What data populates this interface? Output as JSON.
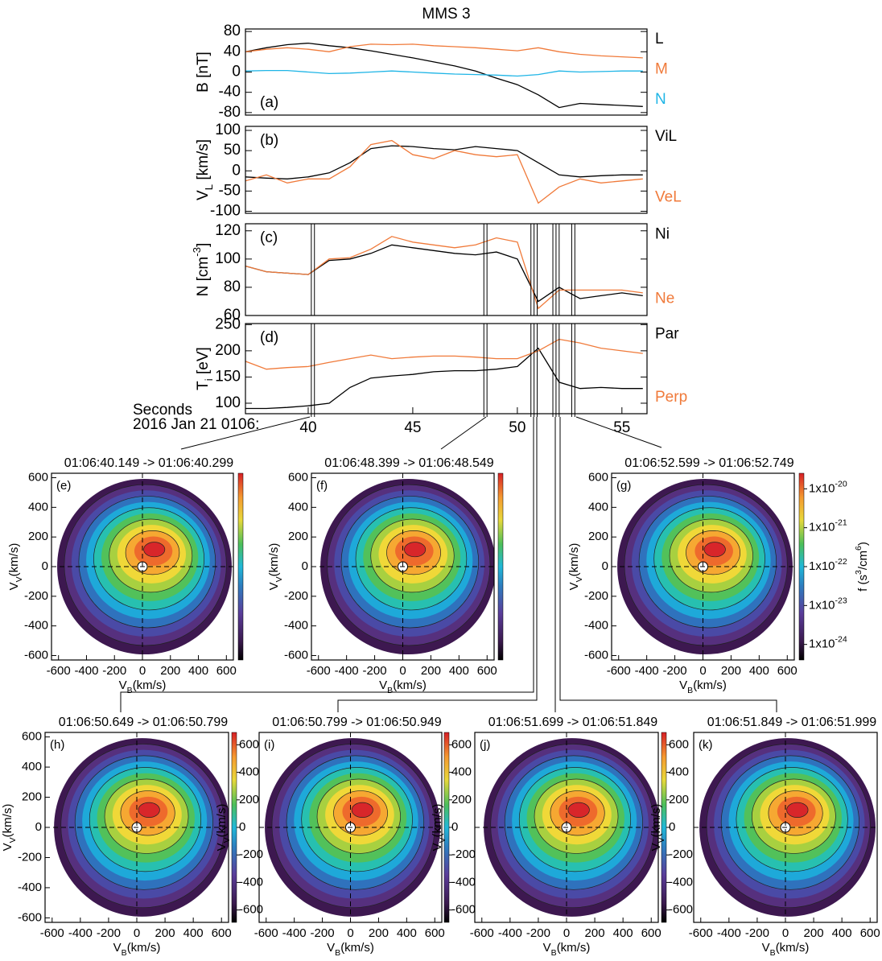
{
  "chart_data": [
    {
      "type": "line",
      "title": "MMS 3",
      "panel_label": "(a)",
      "ylabel": [
        "B [nT]"
      ],
      "ylabel_shift": "sub",
      "x": [
        37,
        38,
        39,
        40,
        41,
        42,
        43,
        44,
        45,
        46,
        47,
        48,
        49,
        50,
        51,
        52,
        53,
        54,
        55,
        56
      ],
      "xlim": [
        37,
        56.2
      ],
      "ylim": [
        -85,
        85
      ],
      "yticks": [
        -80,
        -40,
        0,
        40,
        80
      ],
      "series": [
        {
          "name": "L",
          "color": "#000000",
          "values": [
            40,
            48,
            54,
            57,
            52,
            48,
            42,
            35,
            28,
            20,
            12,
            2,
            -12,
            -25,
            -45,
            -70,
            -62,
            -64,
            -66,
            -68
          ]
        },
        {
          "name": "M",
          "color": "#f07a3a",
          "values": [
            40,
            45,
            48,
            45,
            40,
            50,
            55,
            54,
            55,
            52,
            50,
            48,
            45,
            42,
            48,
            40,
            35,
            32,
            30,
            28
          ]
        },
        {
          "name": "N",
          "color": "#1fb5e6",
          "values": [
            2,
            3,
            3,
            0,
            -3,
            -2,
            0,
            2,
            0,
            -2,
            -4,
            -5,
            -6,
            -8,
            -5,
            2,
            0,
            1,
            2,
            2
          ]
        }
      ]
    },
    {
      "type": "line",
      "panel_label": "(b)",
      "ylabel": [
        "V",
        "L",
        " [km/s]"
      ],
      "ylabel_shift": "sub",
      "x": [
        37,
        38,
        39,
        40,
        41,
        42,
        43,
        44,
        45,
        46,
        47,
        48,
        49,
        50,
        51,
        52,
        53,
        54,
        55,
        56
      ],
      "xlim": [
        37,
        56.2
      ],
      "ylim": [
        -105,
        110
      ],
      "yticks": [
        -100,
        -50,
        0,
        50,
        100
      ],
      "series": [
        {
          "name": "ViL",
          "color": "#000000",
          "values": [
            -15,
            -18,
            -20,
            -15,
            -5,
            20,
            55,
            62,
            60,
            55,
            52,
            60,
            55,
            50,
            20,
            -10,
            -15,
            -12,
            -10,
            -10
          ]
        },
        {
          "name": "VeL",
          "color": "#f07a3a",
          "values": [
            -25,
            -10,
            -30,
            -20,
            -20,
            10,
            65,
            75,
            40,
            30,
            50,
            40,
            35,
            40,
            -80,
            -40,
            -20,
            -30,
            -25,
            -20
          ]
        }
      ]
    },
    {
      "type": "line",
      "panel_label": "(c)",
      "ylabel": [
        "N [cm",
        "-3",
        "]"
      ],
      "ylabel_shift": "super",
      "x": [
        37,
        38,
        39,
        40,
        41,
        42,
        43,
        44,
        45,
        46,
        47,
        48,
        49,
        50,
        51,
        52,
        53,
        54,
        55,
        56
      ],
      "xlim": [
        37,
        56.2
      ],
      "ylim": [
        60,
        125
      ],
      "yticks": [
        60,
        80,
        100,
        120
      ],
      "vlines": [
        40.149,
        40.299,
        48.399,
        48.549,
        50.649,
        50.799,
        50.949,
        51.699,
        51.849,
        51.999,
        52.599,
        52.749
      ],
      "series": [
        {
          "name": "Ni",
          "color": "#000000",
          "values": [
            95,
            91,
            90,
            89,
            99,
            100,
            104,
            110,
            108,
            106,
            104,
            103,
            105,
            100,
            70,
            80,
            72,
            74,
            76,
            74
          ]
        },
        {
          "name": "Ne",
          "color": "#f07a3a",
          "values": [
            95,
            91,
            90,
            89,
            100,
            101,
            107,
            116,
            112,
            110,
            108,
            110,
            115,
            112,
            65,
            78,
            78,
            78,
            78,
            76
          ]
        }
      ]
    },
    {
      "type": "line",
      "panel_label": "(d)",
      "ylabel": [
        "T",
        "i",
        " [eV]"
      ],
      "ylabel_shift": "sub",
      "x": [
        37,
        38,
        39,
        40,
        41,
        42,
        43,
        44,
        45,
        46,
        47,
        48,
        49,
        50,
        51,
        52,
        53,
        54,
        55,
        56
      ],
      "xlim": [
        37,
        56.2
      ],
      "ylim": [
        80,
        252
      ],
      "yticks": [
        100,
        150,
        200,
        250
      ],
      "xticks": [
        40,
        45,
        50,
        55
      ],
      "xlabel": [
        "Seconds",
        "2016 Jan 21 0106:"
      ],
      "vlines": [
        40.149,
        40.299,
        48.399,
        48.549,
        50.649,
        50.799,
        50.949,
        51.699,
        51.849,
        51.999,
        52.599,
        52.749
      ],
      "series": [
        {
          "name": "Par",
          "color": "#000000",
          "values": [
            90,
            90,
            92,
            95,
            100,
            130,
            148,
            152,
            155,
            160,
            162,
            162,
            165,
            170,
            205,
            140,
            128,
            130,
            128,
            128
          ]
        },
        {
          "name": "Perp",
          "color": "#f07a3a",
          "values": [
            180,
            165,
            168,
            170,
            178,
            185,
            192,
            185,
            188,
            190,
            190,
            188,
            185,
            185,
            200,
            222,
            215,
            205,
            200,
            195
          ]
        }
      ]
    },
    {
      "type": "contour",
      "title": "01:06:40.149 -> 01:06:40.299",
      "panel_label": "(e)",
      "xlabel": [
        "V",
        "B",
        "(km/s)"
      ],
      "ylabel": [
        "V",
        "V",
        "(km/s)"
      ],
      "label_shift": "sub",
      "xlim": [
        -650,
        650
      ],
      "ylim": [
        -630,
        630
      ],
      "xticks": [
        -600,
        -400,
        -200,
        0,
        200,
        400,
        600
      ],
      "yticks": [
        -600,
        -400,
        -200,
        0,
        200,
        400,
        600
      ],
      "colorbar_ticks": []
    },
    {
      "type": "contour",
      "title": "01:06:48.399 -> 01:06:48.549",
      "panel_label": "(f)",
      "xlabel": [
        "V",
        "B",
        "(km/s)"
      ],
      "ylabel": [
        "V",
        "V",
        "(km/s)"
      ],
      "label_shift": "sub",
      "xlim": [
        -650,
        650
      ],
      "ylim": [
        -630,
        630
      ],
      "xticks": [
        -600,
        -400,
        -200,
        0,
        200,
        400,
        600
      ],
      "yticks": [
        -600,
        -400,
        -200,
        0,
        200,
        400,
        600
      ],
      "colorbar_ticks": []
    },
    {
      "type": "contour",
      "title": "01:06:52.599 -> 01:06:52.749",
      "panel_label": "(g)",
      "xlabel": [
        "V",
        "B",
        "(km/s)"
      ],
      "ylabel": [
        "V",
        "V",
        "(km/s)"
      ],
      "label_shift": "sub",
      "xlim": [
        -650,
        650
      ],
      "ylim": [
        -630,
        630
      ],
      "xticks": [
        -600,
        -400,
        -200,
        0,
        200,
        400,
        600
      ],
      "yticks": [
        -600,
        -400,
        -200,
        0,
        200,
        400,
        600
      ],
      "colorbar_lim": [
        -24.4,
        -19.6
      ],
      "colorbar_ticks": [
        {
          "value": -20,
          "label": [
            "1x10",
            "-20"
          ]
        },
        {
          "value": -21,
          "label": [
            "1x10",
            "-21"
          ]
        },
        {
          "value": -22,
          "label": [
            "1x10",
            "-22"
          ]
        },
        {
          "value": -23,
          "label": [
            "1x10",
            "-23"
          ]
        },
        {
          "value": -24,
          "label": [
            "1x10",
            "-24"
          ]
        }
      ],
      "colorbar_label": [
        "f (s",
        "3",
        "/cm",
        "6",
        ")"
      ]
    },
    {
      "type": "contour",
      "title": "01:06:50.649 -> 01:06:50.799",
      "panel_label": "(h)",
      "xlabel": [
        "V",
        "B",
        "(km/s)"
      ],
      "ylabel": [
        "V",
        "V",
        "(km/s)"
      ],
      "label_shift": "sub",
      "xlim": [
        -650,
        650
      ],
      "ylim": [
        -630,
        630
      ],
      "xticks": [
        -600,
        -400,
        -200,
        0,
        200,
        400,
        600
      ],
      "yticks": [
        -600,
        -400,
        -200,
        0,
        200,
        400,
        600
      ],
      "colorbar_lim": [
        -690,
        690
      ],
      "colorbar_ticks": [
        -600,
        -400,
        -200,
        0,
        200,
        400,
        600
      ]
    },
    {
      "type": "contour",
      "title": "01:06:50.799 -> 01:06:50.949",
      "panel_label": "(i)",
      "xlabel": [
        "V",
        "B",
        "(km/s)"
      ],
      "ylabel": [
        "V",
        "V",
        "(km/s)"
      ],
      "label_shift": "sub",
      "xlim": [
        -650,
        650
      ],
      "ylim": [
        -630,
        630
      ],
      "xticks": [
        -600,
        -400,
        -200,
        0,
        200,
        400,
        600
      ],
      "yticks": [],
      "colorbar_lim": [
        -690,
        690
      ],
      "colorbar_ticks": [
        -600,
        -400,
        -200,
        0,
        200,
        400,
        600
      ]
    },
    {
      "type": "contour",
      "title": "01:06:51.699 -> 01:06:51.849",
      "panel_label": "(j)",
      "xlabel": [
        "V",
        "B",
        "(km/s)"
      ],
      "ylabel": [
        "V",
        "V",
        "(km/s)"
      ],
      "label_shift": "sub",
      "xlim": [
        -650,
        650
      ],
      "ylim": [
        -630,
        630
      ],
      "xticks": [
        -600,
        -400,
        -200,
        0,
        200,
        400,
        600
      ],
      "yticks": [],
      "colorbar_lim": [
        -690,
        690
      ],
      "colorbar_ticks": [
        -600,
        -400,
        -200,
        0,
        200,
        400,
        600
      ]
    },
    {
      "type": "contour",
      "title": "01:06:51.849 -> 01:06:51.999",
      "panel_label": "(k)",
      "xlabel": [
        "V",
        "B",
        "(km/s)"
      ],
      "ylabel": [
        "V",
        "V",
        "(km/s)"
      ],
      "label_shift": "sub",
      "xlim": [
        -650,
        650
      ],
      "ylim": [
        -630,
        630
      ],
      "xticks": [
        -600,
        -400,
        -200,
        0,
        200,
        400,
        600
      ],
      "yticks": [],
      "colorbar_ticks": []
    }
  ]
}
